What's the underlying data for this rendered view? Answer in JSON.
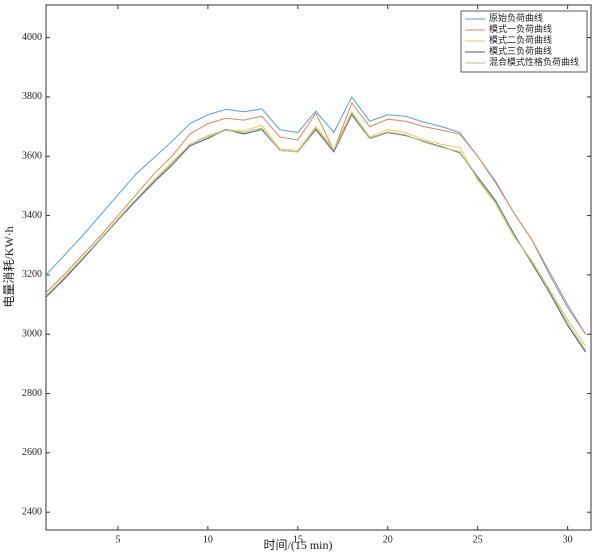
{
  "chart_data": {
    "type": "line",
    "x_label": "时间/(15 min)",
    "y_label": "电量消耗/KW·h",
    "x": [
      1,
      2,
      3,
      4,
      5,
      6,
      7,
      8,
      9,
      10,
      11,
      12,
      13,
      14,
      15,
      16,
      17,
      18,
      19,
      20,
      21,
      22,
      23,
      24,
      25,
      26,
      27,
      28,
      29,
      30,
      31
    ],
    "xlim": [
      1,
      31.3
    ],
    "xticks": [
      5,
      10,
      15,
      20,
      25,
      30
    ],
    "ylim": [
      2340,
      4110
    ],
    "yticks": [
      2400,
      2600,
      2800,
      3000,
      3200,
      3400,
      3600,
      3800,
      4000
    ],
    "legend": "upper right",
    "series": [
      {
        "name": "原始负荷曲线",
        "color": "#5a9fd4",
        "values": [
          3200,
          3265,
          3330,
          3400,
          3470,
          3540,
          3595,
          3650,
          3710,
          3740,
          3758,
          3750,
          3760,
          3690,
          3680,
          3752,
          3680,
          3800,
          3718,
          3740,
          3735,
          3715,
          3700,
          3680,
          3600,
          3515,
          3410,
          3320,
          3200,
          3090,
          3000
        ]
      },
      {
        "name": "模式一负荷曲线",
        "color": "#e0875a",
        "values": [
          3140,
          3200,
          3265,
          3330,
          3400,
          3470,
          3540,
          3600,
          3675,
          3710,
          3728,
          3722,
          3735,
          3665,
          3655,
          3745,
          3620,
          3780,
          3700,
          3725,
          3718,
          3700,
          3688,
          3675,
          3600,
          3510,
          3410,
          3320,
          3210,
          3100,
          3000
        ]
      },
      {
        "name": "模式二负荷曲线",
        "color": "#f2c45a",
        "values": [
          3130,
          3190,
          3255,
          3320,
          3390,
          3455,
          3520,
          3580,
          3640,
          3670,
          3690,
          3685,
          3705,
          3625,
          3620,
          3700,
          3625,
          3750,
          3665,
          3690,
          3680,
          3655,
          3640,
          3630,
          3520,
          3440,
          3330,
          3250,
          3150,
          3050,
          2960
        ]
      },
      {
        "name": "模式三负荷曲线",
        "color": "#4e5a82",
        "values": [
          3125,
          3185,
          3250,
          3318,
          3385,
          3450,
          3512,
          3570,
          3635,
          3660,
          3690,
          3675,
          3690,
          3620,
          3615,
          3690,
          3615,
          3740,
          3660,
          3680,
          3670,
          3650,
          3632,
          3612,
          3530,
          3450,
          3340,
          3240,
          3140,
          3030,
          2940
        ]
      },
      {
        "name": "混合模式性格负荷曲线",
        "color": "#a9c97c",
        "values": [
          3130,
          3190,
          3255,
          3320,
          3388,
          3455,
          3518,
          3575,
          3640,
          3665,
          3688,
          3680,
          3695,
          3620,
          3615,
          3695,
          3620,
          3745,
          3662,
          3682,
          3672,
          3648,
          3630,
          3615,
          3525,
          3445,
          3335,
          3245,
          3145,
          3040,
          2945
        ]
      }
    ]
  }
}
